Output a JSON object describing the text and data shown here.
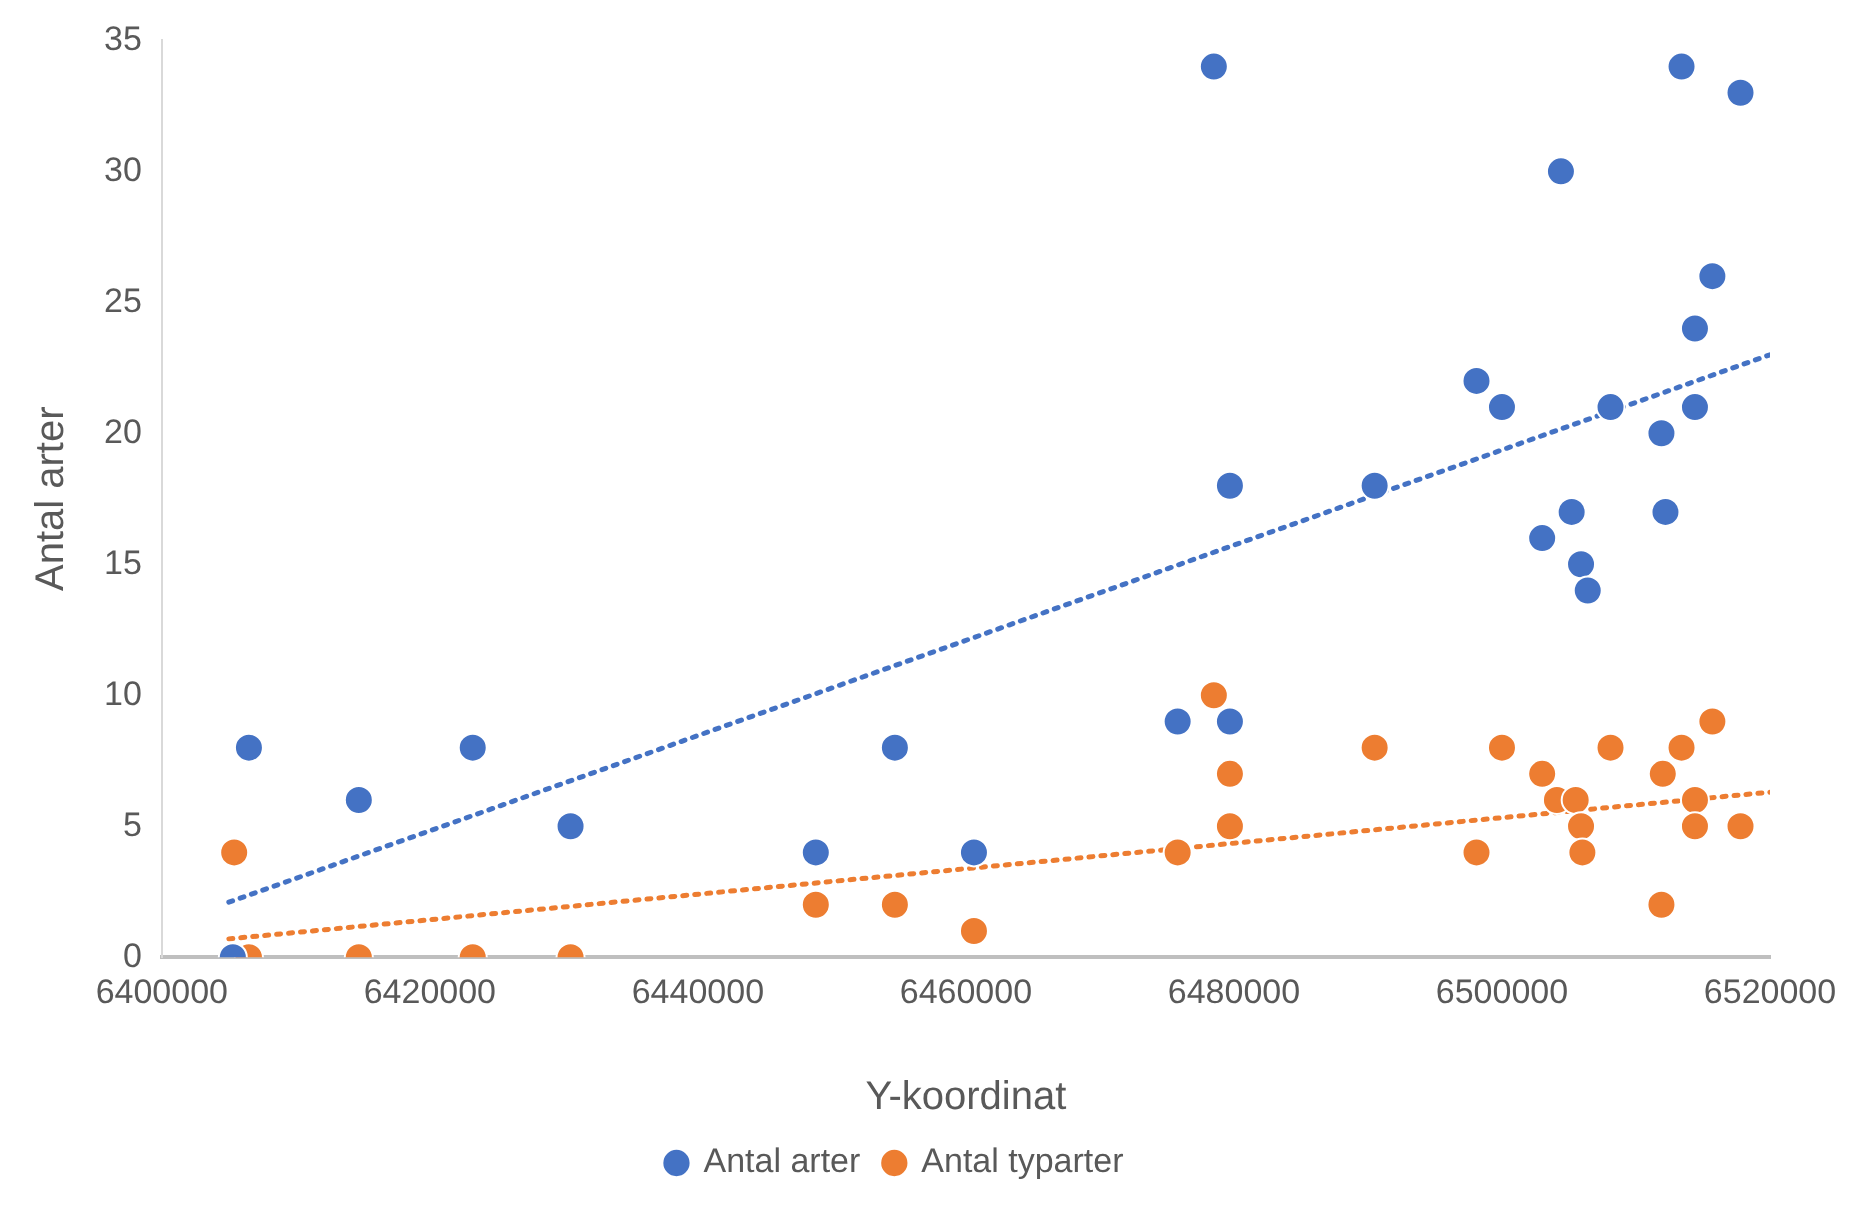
{
  "chart_data": {
    "type": "scatter",
    "xlabel": "Y-koordinat",
    "ylabel": "Antal arter",
    "xlim": [
      6400000,
      6520000
    ],
    "xticks": [
      6400000,
      6420000,
      6440000,
      6460000,
      6480000,
      6500000,
      6520000
    ],
    "ylim": [
      0,
      35
    ],
    "yticks": [
      0,
      5,
      10,
      15,
      20,
      25,
      30,
      35
    ],
    "grid": false,
    "legend": "bottom",
    "marker": "circle",
    "series": [
      {
        "name": "Antal arter",
        "color": "#4472c4",
        "x": [
          6405300,
          6406500,
          6414700,
          6423200,
          6430500,
          6448800,
          6454700,
          6460600,
          6475800,
          6478500,
          6479700,
          6479700,
          6490500,
          6498100,
          6500000,
          6504400,
          6503000,
          6505200,
          6505900,
          6506400,
          6508100,
          6511900,
          6512200,
          6513400,
          6514400,
          6514400,
          6515700,
          6517800
        ],
        "values": [
          0,
          8,
          6,
          8,
          5,
          4,
          8,
          4,
          9,
          34,
          18,
          9,
          18,
          22,
          21,
          30,
          16,
          17,
          15,
          14,
          21,
          20,
          17,
          34,
          24,
          21,
          26,
          33
        ]
      },
      {
        "name": "Antal typarter",
        "color": "#ed7d31",
        "x": [
          6405400,
          6406500,
          6414700,
          6423200,
          6430500,
          6448800,
          6454700,
          6460600,
          6475800,
          6478500,
          6479700,
          6479700,
          6490500,
          6498100,
          6500000,
          6503000,
          6504100,
          6505500,
          6505900,
          6506000,
          6508100,
          6511900,
          6512000,
          6513400,
          6514400,
          6514400,
          6515700,
          6517800
        ],
        "values": [
          4,
          0,
          0,
          0,
          0,
          2,
          2,
          1,
          4,
          10,
          7,
          5,
          8,
          4,
          8,
          7,
          6,
          6,
          5,
          4,
          8,
          2,
          7,
          8,
          6,
          5,
          9,
          5
        ]
      },
      {
        "type": "line",
        "color": "#4472c4",
        "line_style": "dotted",
        "marker": "none",
        "x": [
          6405000,
          6520000
        ],
        "values": [
          2.1,
          23
        ]
      },
      {
        "type": "line",
        "color": "#ed7d31",
        "line_style": "dotted",
        "marker": "none",
        "x": [
          6405000,
          6520000
        ],
        "values": [
          0.7,
          6.3
        ]
      }
    ]
  }
}
